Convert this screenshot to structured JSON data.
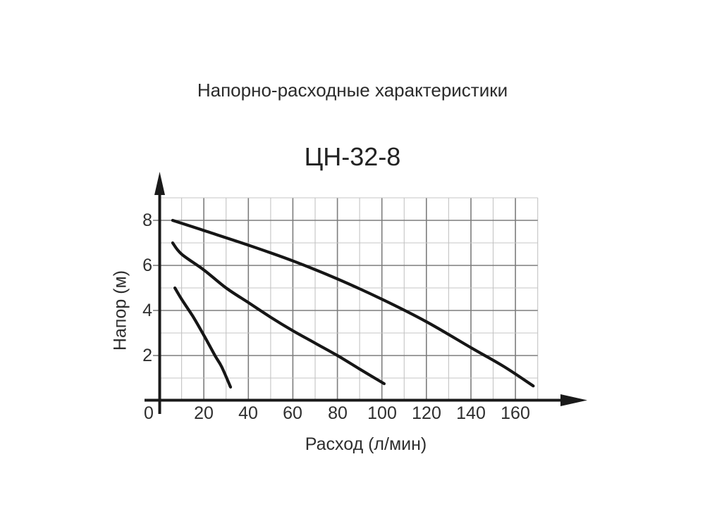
{
  "chart_data": {
    "type": "line",
    "title": "Напорно-расходные характеристики",
    "subtitle": "ЦН-32-8",
    "xlabel": "Расход (л/мин)",
    "ylabel": "Напор (м)",
    "xlim": [
      0,
      170
    ],
    "ylim": [
      0,
      9
    ],
    "x_ticks": [
      0,
      20,
      40,
      60,
      80,
      100,
      120,
      140,
      160
    ],
    "y_ticks": [
      2,
      4,
      6,
      8
    ],
    "x_grid_step": 10,
    "y_grid_step": 1,
    "x_major_step": 20,
    "y_major_step": 2,
    "grid": true,
    "legend_position": "none",
    "series": [
      {
        "name": "curve-1-upper",
        "points": [
          [
            6,
            8.0
          ],
          [
            20,
            7.55
          ],
          [
            40,
            6.9
          ],
          [
            60,
            6.2
          ],
          [
            80,
            5.4
          ],
          [
            100,
            4.5
          ],
          [
            120,
            3.5
          ],
          [
            140,
            2.35
          ],
          [
            155,
            1.5
          ],
          [
            168,
            0.65
          ]
        ]
      },
      {
        "name": "curve-2-middle",
        "points": [
          [
            6,
            7.0
          ],
          [
            10,
            6.5
          ],
          [
            20,
            5.8
          ],
          [
            30,
            5.0
          ],
          [
            40,
            4.35
          ],
          [
            50,
            3.7
          ],
          [
            60,
            3.1
          ],
          [
            70,
            2.55
          ],
          [
            80,
            2.0
          ],
          [
            90,
            1.4
          ],
          [
            101,
            0.75
          ]
        ]
      },
      {
        "name": "curve-3-lower",
        "points": [
          [
            7,
            5.0
          ],
          [
            10,
            4.5
          ],
          [
            15,
            3.75
          ],
          [
            20,
            2.9
          ],
          [
            25,
            2.0
          ],
          [
            28,
            1.5
          ],
          [
            32,
            0.6
          ]
        ]
      }
    ],
    "colors": {
      "curve": "#161616",
      "axis": "#1a1a1a",
      "grid_major": "#7d7d7d",
      "grid_minor": "#c4c4c4",
      "text": "#2e2e2e",
      "background": "#ffffff"
    }
  }
}
